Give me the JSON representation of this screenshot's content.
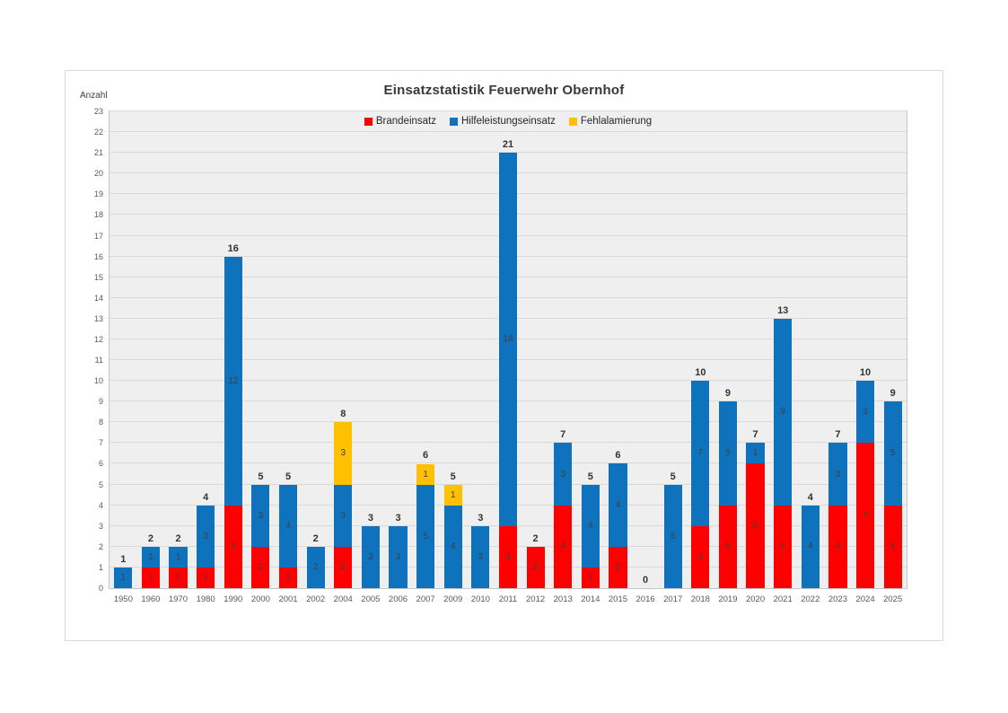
{
  "chart_data": {
    "type": "bar",
    "stacked": true,
    "title": "Einsatzstatistik Feuerwehr Obernhof",
    "xlabel": "",
    "ylabel": "Anzahl",
    "ylim": [
      0,
      23
    ],
    "ytick_step": 1,
    "grid": true,
    "legend_position": "top-center",
    "plot_background": "#efefef",
    "categories": [
      "1950",
      "1960",
      "1970",
      "1980",
      "1990",
      "2000",
      "2001",
      "2002",
      "2004",
      "2005",
      "2006",
      "2007",
      "2009",
      "2010",
      "2011",
      "2012",
      "2013",
      "2014",
      "2015",
      "2016",
      "2017",
      "2018",
      "2019",
      "2020",
      "2021",
      "2022",
      "2023",
      "2024",
      "2025"
    ],
    "series": [
      {
        "name": "Brandeinsatz",
        "color": "#fe0000",
        "values": [
          0,
          1,
          1,
          1,
          4,
          2,
          1,
          0,
          2,
          0,
          0,
          0,
          0,
          0,
          3,
          2,
          4,
          1,
          2,
          0,
          0,
          3,
          4,
          6,
          4,
          0,
          4,
          7,
          4
        ]
      },
      {
        "name": "Hilfeleistungseinsatz",
        "color": "#0e72bd",
        "values": [
          1,
          1,
          1,
          3,
          12,
          3,
          4,
          2,
          3,
          3,
          3,
          5,
          4,
          3,
          18,
          0,
          3,
          4,
          4,
          0,
          5,
          7,
          5,
          1,
          9,
          4,
          3,
          3,
          5
        ]
      },
      {
        "name": "Fehlalamierung",
        "color": "#ffc000",
        "values": [
          0,
          0,
          0,
          0,
          0,
          0,
          0,
          0,
          3,
          0,
          0,
          1,
          1,
          0,
          0,
          0,
          0,
          0,
          0,
          0,
          0,
          0,
          0,
          0,
          0,
          0,
          0,
          0,
          0
        ]
      }
    ],
    "totals": [
      1,
      2,
      2,
      4,
      16,
      5,
      5,
      2,
      8,
      3,
      3,
      6,
      5,
      3,
      21,
      2,
      7,
      5,
      6,
      0,
      5,
      10,
      9,
      7,
      13,
      4,
      7,
      10,
      9
    ]
  }
}
